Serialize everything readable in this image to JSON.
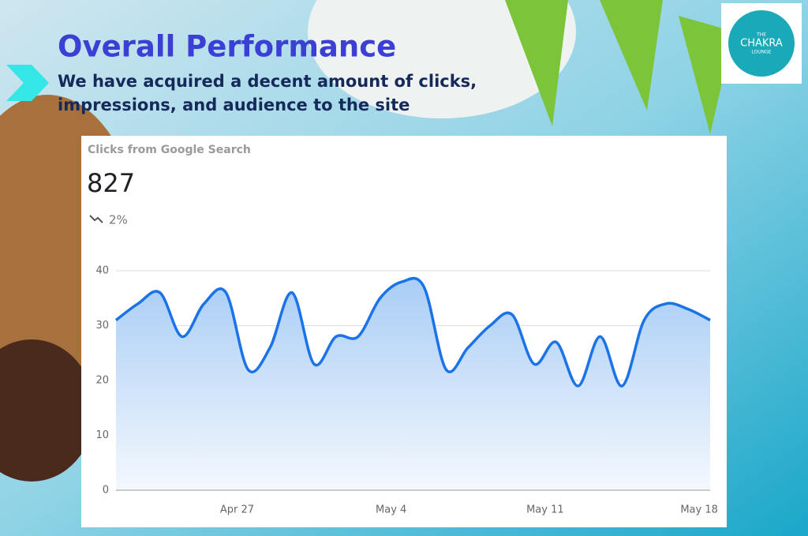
{
  "slide_title": "Overall Performance",
  "slide_subtitle": "We have acquired a decent amount of clicks, impressions, and audience to the site",
  "logo": {
    "top": "THE",
    "name": "CHAKRA",
    "bottom": "LOUNGE"
  },
  "chart_data": {
    "type": "line",
    "title": "Clicks from Google Search",
    "total": "827",
    "change": "2%",
    "categories": [
      null,
      null,
      null,
      null,
      null,
      "Apr 27",
      null,
      null,
      null,
      null,
      null,
      null,
      "May 4",
      null,
      null,
      null,
      null,
      null,
      null,
      "May 11",
      null,
      null,
      null,
      null,
      null,
      null,
      "May 18",
      null
    ],
    "series": [
      {
        "name": "Clicks",
        "color": "#1a73e8",
        "values": [
          31,
          34,
          36,
          28,
          34,
          36,
          22,
          26,
          36,
          23,
          28,
          28,
          35,
          38,
          37,
          22,
          26,
          30,
          32,
          23,
          27,
          19,
          28,
          19,
          31,
          34,
          33,
          31
        ]
      }
    ],
    "ylim": [
      0,
      40
    ],
    "yticks": [
      0,
      10,
      20,
      30,
      40
    ],
    "grid": true
  }
}
